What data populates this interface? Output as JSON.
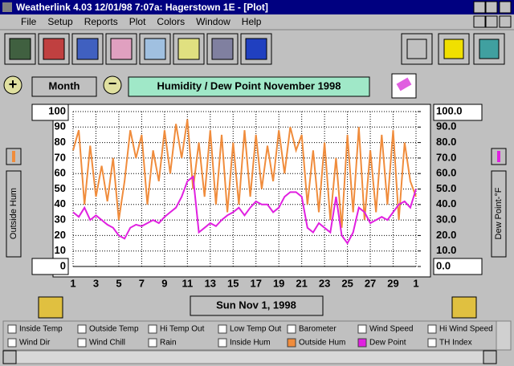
{
  "window_title": "Weatherlink 4.03  12/01/98   7:07a: Hagerstown 1E - [Plot]",
  "menu": [
    "File",
    "Setup",
    "Reports",
    "Plot",
    "Colors",
    "Window",
    "Help"
  ],
  "period_button": "Month",
  "date_button": "Sun Nov 1, 1998",
  "chart_data": {
    "type": "line",
    "title": "Humidity  /  Dew Point   November 1998",
    "y_label": "Outside Hum",
    "y2_label": "Dew Point-°F",
    "x": [
      1,
      1.5,
      2,
      2.5,
      3,
      3.5,
      4,
      4.5,
      5,
      5.5,
      6,
      6.5,
      7,
      7.5,
      8,
      8.5,
      9,
      9.5,
      10,
      10.5,
      11,
      11.5,
      12,
      12.5,
      13,
      13.5,
      14,
      14.5,
      15,
      15.5,
      16,
      16.5,
      17,
      17.5,
      18,
      18.5,
      19,
      19.5,
      20,
      20.5,
      21,
      21.5,
      22,
      22.5,
      23,
      23.5,
      24,
      24.5,
      25,
      25.5,
      26,
      26.5,
      27,
      27.5,
      28,
      28.5,
      29,
      29.5,
      30,
      30.5,
      31
    ],
    "series": [
      {
        "name": "Outside Hum",
        "color": "#f08c3c",
        "values": [
          75,
          88,
          40,
          78,
          45,
          65,
          42,
          70,
          30,
          55,
          88,
          70,
          85,
          40,
          75,
          55,
          88,
          60,
          92,
          70,
          95,
          50,
          80,
          45,
          88,
          40,
          85,
          35,
          80,
          40,
          88,
          45,
          85,
          50,
          78,
          55,
          88,
          60,
          90,
          75,
          85,
          40,
          75,
          35,
          80,
          30,
          70,
          25,
          85,
          35,
          90,
          30,
          75,
          35,
          85,
          40,
          88,
          30,
          80,
          55,
          45
        ]
      },
      {
        "name": "Dew Point",
        "color": "#e020e0",
        "axis": "y2",
        "values": [
          35,
          32,
          38,
          30,
          33,
          30,
          27,
          25,
          20,
          18,
          25,
          27,
          26,
          28,
          30,
          28,
          32,
          35,
          38,
          45,
          55,
          58,
          22,
          25,
          28,
          26,
          30,
          33,
          35,
          38,
          33,
          38,
          42,
          40,
          40,
          35,
          38,
          45,
          48,
          48,
          45,
          25,
          22,
          28,
          25,
          22,
          45,
          20,
          15,
          22,
          38,
          35,
          28,
          30,
          32,
          30,
          35,
          40,
          42,
          38,
          50
        ]
      }
    ],
    "xlim": [
      1,
      31
    ],
    "xticks": [
      1,
      3,
      5,
      7,
      9,
      11,
      13,
      15,
      17,
      19,
      21,
      23,
      25,
      27,
      29,
      {
        "value": 31,
        "label": "1"
      }
    ],
    "ylim": [
      0,
      100
    ],
    "yticks": [
      0,
      10,
      20,
      30,
      40,
      50,
      60,
      70,
      80,
      90,
      100
    ],
    "y2lim": [
      0,
      100
    ],
    "y2ticks": [
      {
        "value": 0,
        "label": "0.0"
      },
      {
        "value": 10,
        "label": "10.0"
      },
      {
        "value": 20,
        "label": "20.0"
      },
      {
        "value": 30,
        "label": "30.0"
      },
      {
        "value": 40,
        "label": "40.0"
      },
      {
        "value": 50,
        "label": "50.0"
      },
      {
        "value": 60,
        "label": "60.0"
      },
      {
        "value": 70,
        "label": "70.0"
      },
      {
        "value": 80,
        "label": "80.0"
      },
      {
        "value": 90,
        "label": "90.0"
      },
      {
        "value": 100,
        "label": "100.0"
      }
    ],
    "grid": true
  },
  "legend_items": [
    {
      "label": "Inside Temp"
    },
    {
      "label": "Outside Temp"
    },
    {
      "label": "Hi Temp Out"
    },
    {
      "label": "Low Temp Out"
    },
    {
      "label": "Barometer"
    },
    {
      "label": "Wind Speed"
    },
    {
      "label": "Hi Wind Speed"
    },
    {
      "label": "Wind Dir"
    },
    {
      "label": "Wind Chill"
    },
    {
      "label": "Rain"
    },
    {
      "label": "Inside Hum"
    },
    {
      "label": "Outside Hum",
      "checked": true,
      "color": "#f08c3c"
    },
    {
      "label": "Dew Point",
      "checked": true,
      "color": "#e020e0"
    },
    {
      "label": "TH Index"
    }
  ]
}
